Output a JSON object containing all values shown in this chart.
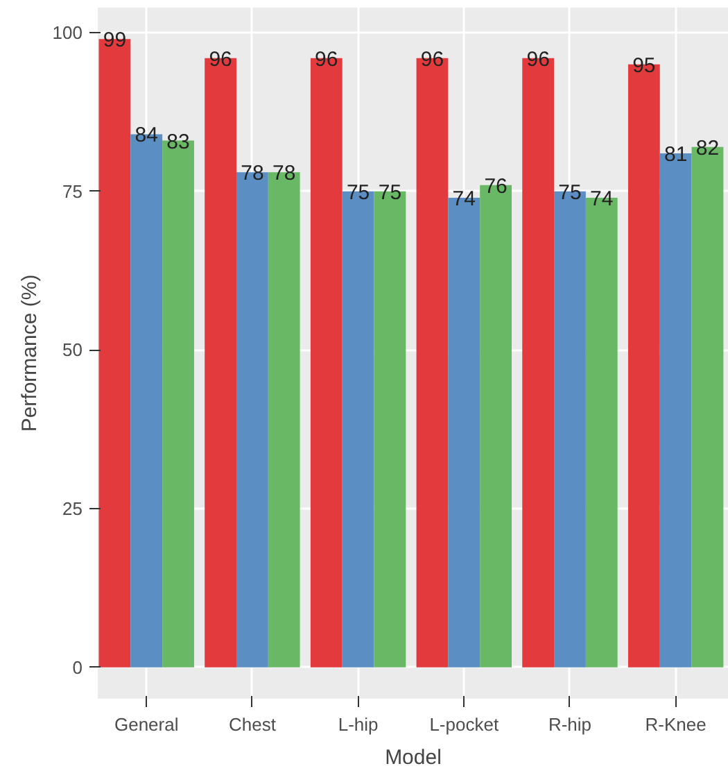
{
  "chart_data": {
    "type": "bar",
    "xlabel": "Model",
    "ylabel": "Performance (%)",
    "categories": [
      "General",
      "Chest",
      "L-hip",
      "L-pocket",
      "R-hip",
      "R-Knee"
    ],
    "series": [
      {
        "color": "#e33b3d",
        "values": [
          99,
          96,
          96,
          96,
          96,
          95
        ]
      },
      {
        "color": "#5b8fc3",
        "values": [
          84,
          78,
          75,
          74,
          75,
          81
        ]
      },
      {
        "color": "#68b866",
        "values": [
          83,
          78,
          75,
          76,
          74,
          82
        ]
      }
    ],
    "ylim": [
      -4.95,
      103.95
    ],
    "yticks": [
      0,
      25,
      50,
      75,
      100
    ],
    "grid": true,
    "data_labels": true
  }
}
